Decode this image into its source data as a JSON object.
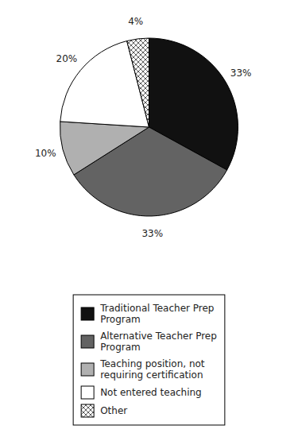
{
  "chart_data": {
    "type": "pie",
    "categories": [
      "Traditional Teacher Prep\nProgram",
      "Alternative Teacher Prep\nProgram",
      "Teaching position, not\nrequiring certification",
      "Not entered teaching",
      "Other"
    ],
    "values": [
      33,
      33,
      10,
      20,
      4
    ],
    "value_labels": [
      "33%",
      "33%",
      "10%",
      "20%",
      "4%"
    ],
    "colors": [
      "#111111",
      "#636363",
      "#b0b0b0",
      "#ffffff",
      "#ffffff"
    ],
    "data_labels": true,
    "legend": "bottom"
  }
}
